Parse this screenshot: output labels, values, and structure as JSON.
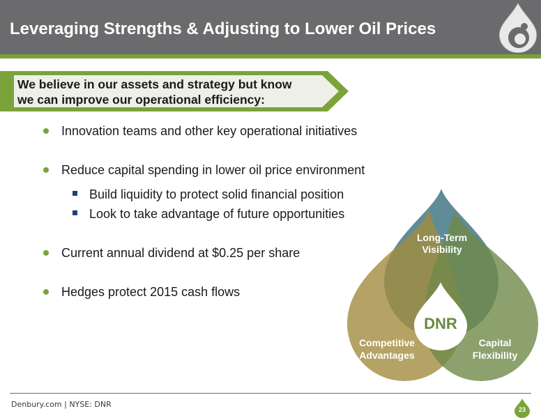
{
  "header": {
    "title": "Leveraging Strengths & Adjusting to Lower Oil Prices",
    "logo_icon": "drop-logo-icon"
  },
  "callout": {
    "line1": "We believe in our assets and strategy but know",
    "line2": "we can improve our operational efficiency:"
  },
  "bullets": [
    "Innovation teams and other key operational initiatives",
    "Reduce capital spending in lower oil price environment",
    "Current annual dividend at $0.25 per share",
    "Hedges protect 2015 cash flows"
  ],
  "sub_bullets": [
    "Build liquidity to protect solid financial position",
    "Look to take advantage of future opportunities"
  ],
  "diagram": {
    "top_line1": "Long-Term",
    "top_line2": "Visibility",
    "left_line1": "Competitive",
    "left_line2": "Advantages",
    "right_line1": "Capital",
    "right_line2": "Flexibility",
    "center": "DNR"
  },
  "footer": {
    "text": "Denbury.com | NYSE: DNR",
    "page": "23"
  },
  "colors": {
    "accent_green": "#7aa33a",
    "header_gray": "#6b6b6d",
    "blue_drop": "#4f7f8d",
    "gold_drop": "#a38c3e",
    "olive_drop": "#7b9157"
  }
}
